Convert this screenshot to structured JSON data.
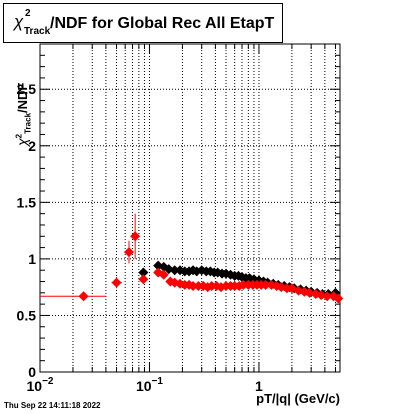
{
  "title": {
    "chi_symbol": "χ",
    "superscript": "2",
    "subscript": "Track",
    "rest": "/NDF for Global Rec All EtapT"
  },
  "ylabel": {
    "chi_symbol": "χ",
    "superscript": "2",
    "subscript": "Track",
    "rest": "/NDF"
  },
  "xlabel": "pT/|q| (GeV/c)",
  "timestamp": "Thu Sep 22 14:11:18 2022",
  "chart_data": {
    "type": "scatter",
    "x_scale": "log",
    "xlim": [
      0.01,
      5.5
    ],
    "ylim": [
      0,
      2.9
    ],
    "grid": true,
    "xlabel": "pT/|q| (GeV/c)",
    "ylabel": "χ2 Track /NDF",
    "x_tick_labels": [
      {
        "value": 0.01,
        "base": "10",
        "exp": "−2"
      },
      {
        "value": 0.1,
        "base": "10",
        "exp": "−1"
      },
      {
        "value": 1,
        "base": "1",
        "exp": ""
      }
    ],
    "y_ticks": [
      0,
      0.5,
      1,
      1.5,
      2,
      2.5
    ],
    "y_tick_labels": [
      "0",
      "0.5",
      "1",
      "1.5",
      "2",
      "2.5"
    ],
    "series": [
      {
        "color": "#000000",
        "marker": "diamond",
        "points": [
          {
            "x": 0.088,
            "y": 0.88
          },
          {
            "x": 0.12,
            "y": 0.94
          },
          {
            "x": 0.135,
            "y": 0.93
          },
          {
            "x": 0.15,
            "y": 0.91
          },
          {
            "x": 0.17,
            "y": 0.9
          },
          {
            "x": 0.19,
            "y": 0.9
          },
          {
            "x": 0.21,
            "y": 0.89
          },
          {
            "x": 0.23,
            "y": 0.89
          },
          {
            "x": 0.25,
            "y": 0.9
          },
          {
            "x": 0.27,
            "y": 0.89
          },
          {
            "x": 0.3,
            "y": 0.9
          },
          {
            "x": 0.33,
            "y": 0.89
          },
          {
            "x": 0.36,
            "y": 0.89
          },
          {
            "x": 0.39,
            "y": 0.88
          },
          {
            "x": 0.42,
            "y": 0.88
          },
          {
            "x": 0.46,
            "y": 0.87
          },
          {
            "x": 0.5,
            "y": 0.87
          },
          {
            "x": 0.55,
            "y": 0.86
          },
          {
            "x": 0.6,
            "y": 0.85
          },
          {
            "x": 0.65,
            "y": 0.85
          },
          {
            "x": 0.7,
            "y": 0.84
          },
          {
            "x": 0.76,
            "y": 0.83
          },
          {
            "x": 0.82,
            "y": 0.83
          },
          {
            "x": 0.9,
            "y": 0.82
          },
          {
            "x": 1.0,
            "y": 0.81
          },
          {
            "x": 1.1,
            "y": 0.8
          },
          {
            "x": 1.2,
            "y": 0.79
          },
          {
            "x": 1.35,
            "y": 0.78
          },
          {
            "x": 1.5,
            "y": 0.77
          },
          {
            "x": 1.7,
            "y": 0.76
          },
          {
            "x": 1.9,
            "y": 0.75
          },
          {
            "x": 2.1,
            "y": 0.74
          },
          {
            "x": 2.4,
            "y": 0.73
          },
          {
            "x": 2.7,
            "y": 0.72
          },
          {
            "x": 3.0,
            "y": 0.71
          },
          {
            "x": 3.4,
            "y": 0.7
          },
          {
            "x": 3.8,
            "y": 0.69
          },
          {
            "x": 4.3,
            "y": 0.69
          },
          {
            "x": 5.0,
            "y": 0.7
          }
        ]
      },
      {
        "color": "#ff0000",
        "marker": "diamond",
        "points": [
          {
            "x": 0.025,
            "y": 0.67,
            "xerr": [
              0.01,
              0.04
            ],
            "yerr": 0.04
          },
          {
            "x": 0.05,
            "y": 0.79,
            "xerr": [
              0.045,
              0.056
            ],
            "yerr": 0.05
          },
          {
            "x": 0.065,
            "y": 1.06,
            "xerr": [
              0.062,
              0.069
            ],
            "yerr": 0.1
          },
          {
            "x": 0.074,
            "y": 1.2,
            "xerr": [
              0.071,
              0.077
            ],
            "yerr": 0.2
          },
          {
            "x": 0.088,
            "y": 0.82
          },
          {
            "x": 0.12,
            "y": 0.88
          },
          {
            "x": 0.135,
            "y": 0.86
          },
          {
            "x": 0.155,
            "y": 0.8
          },
          {
            "x": 0.17,
            "y": 0.79
          },
          {
            "x": 0.19,
            "y": 0.78
          },
          {
            "x": 0.21,
            "y": 0.77
          },
          {
            "x": 0.23,
            "y": 0.77
          },
          {
            "x": 0.25,
            "y": 0.76
          },
          {
            "x": 0.28,
            "y": 0.76
          },
          {
            "x": 0.31,
            "y": 0.76
          },
          {
            "x": 0.34,
            "y": 0.75
          },
          {
            "x": 0.37,
            "y": 0.76
          },
          {
            "x": 0.41,
            "y": 0.76
          },
          {
            "x": 0.45,
            "y": 0.75
          },
          {
            "x": 0.5,
            "y": 0.76
          },
          {
            "x": 0.55,
            "y": 0.76
          },
          {
            "x": 0.6,
            "y": 0.76
          },
          {
            "x": 0.66,
            "y": 0.76
          },
          {
            "x": 0.72,
            "y": 0.77
          },
          {
            "x": 0.8,
            "y": 0.77
          },
          {
            "x": 0.88,
            "y": 0.77
          },
          {
            "x": 0.96,
            "y": 0.77
          },
          {
            "x": 1.05,
            "y": 0.77
          },
          {
            "x": 1.15,
            "y": 0.77
          },
          {
            "x": 1.3,
            "y": 0.77
          },
          {
            "x": 1.45,
            "y": 0.76
          },
          {
            "x": 1.6,
            "y": 0.75
          },
          {
            "x": 1.8,
            "y": 0.74
          },
          {
            "x": 2.0,
            "y": 0.74
          },
          {
            "x": 2.3,
            "y": 0.72
          },
          {
            "x": 2.6,
            "y": 0.71
          },
          {
            "x": 2.9,
            "y": 0.7
          },
          {
            "x": 3.3,
            "y": 0.69
          },
          {
            "x": 3.7,
            "y": 0.68
          },
          {
            "x": 4.2,
            "y": 0.67
          },
          {
            "x": 4.8,
            "y": 0.67
          },
          {
            "x": 5.3,
            "y": 0.65
          }
        ]
      }
    ]
  }
}
